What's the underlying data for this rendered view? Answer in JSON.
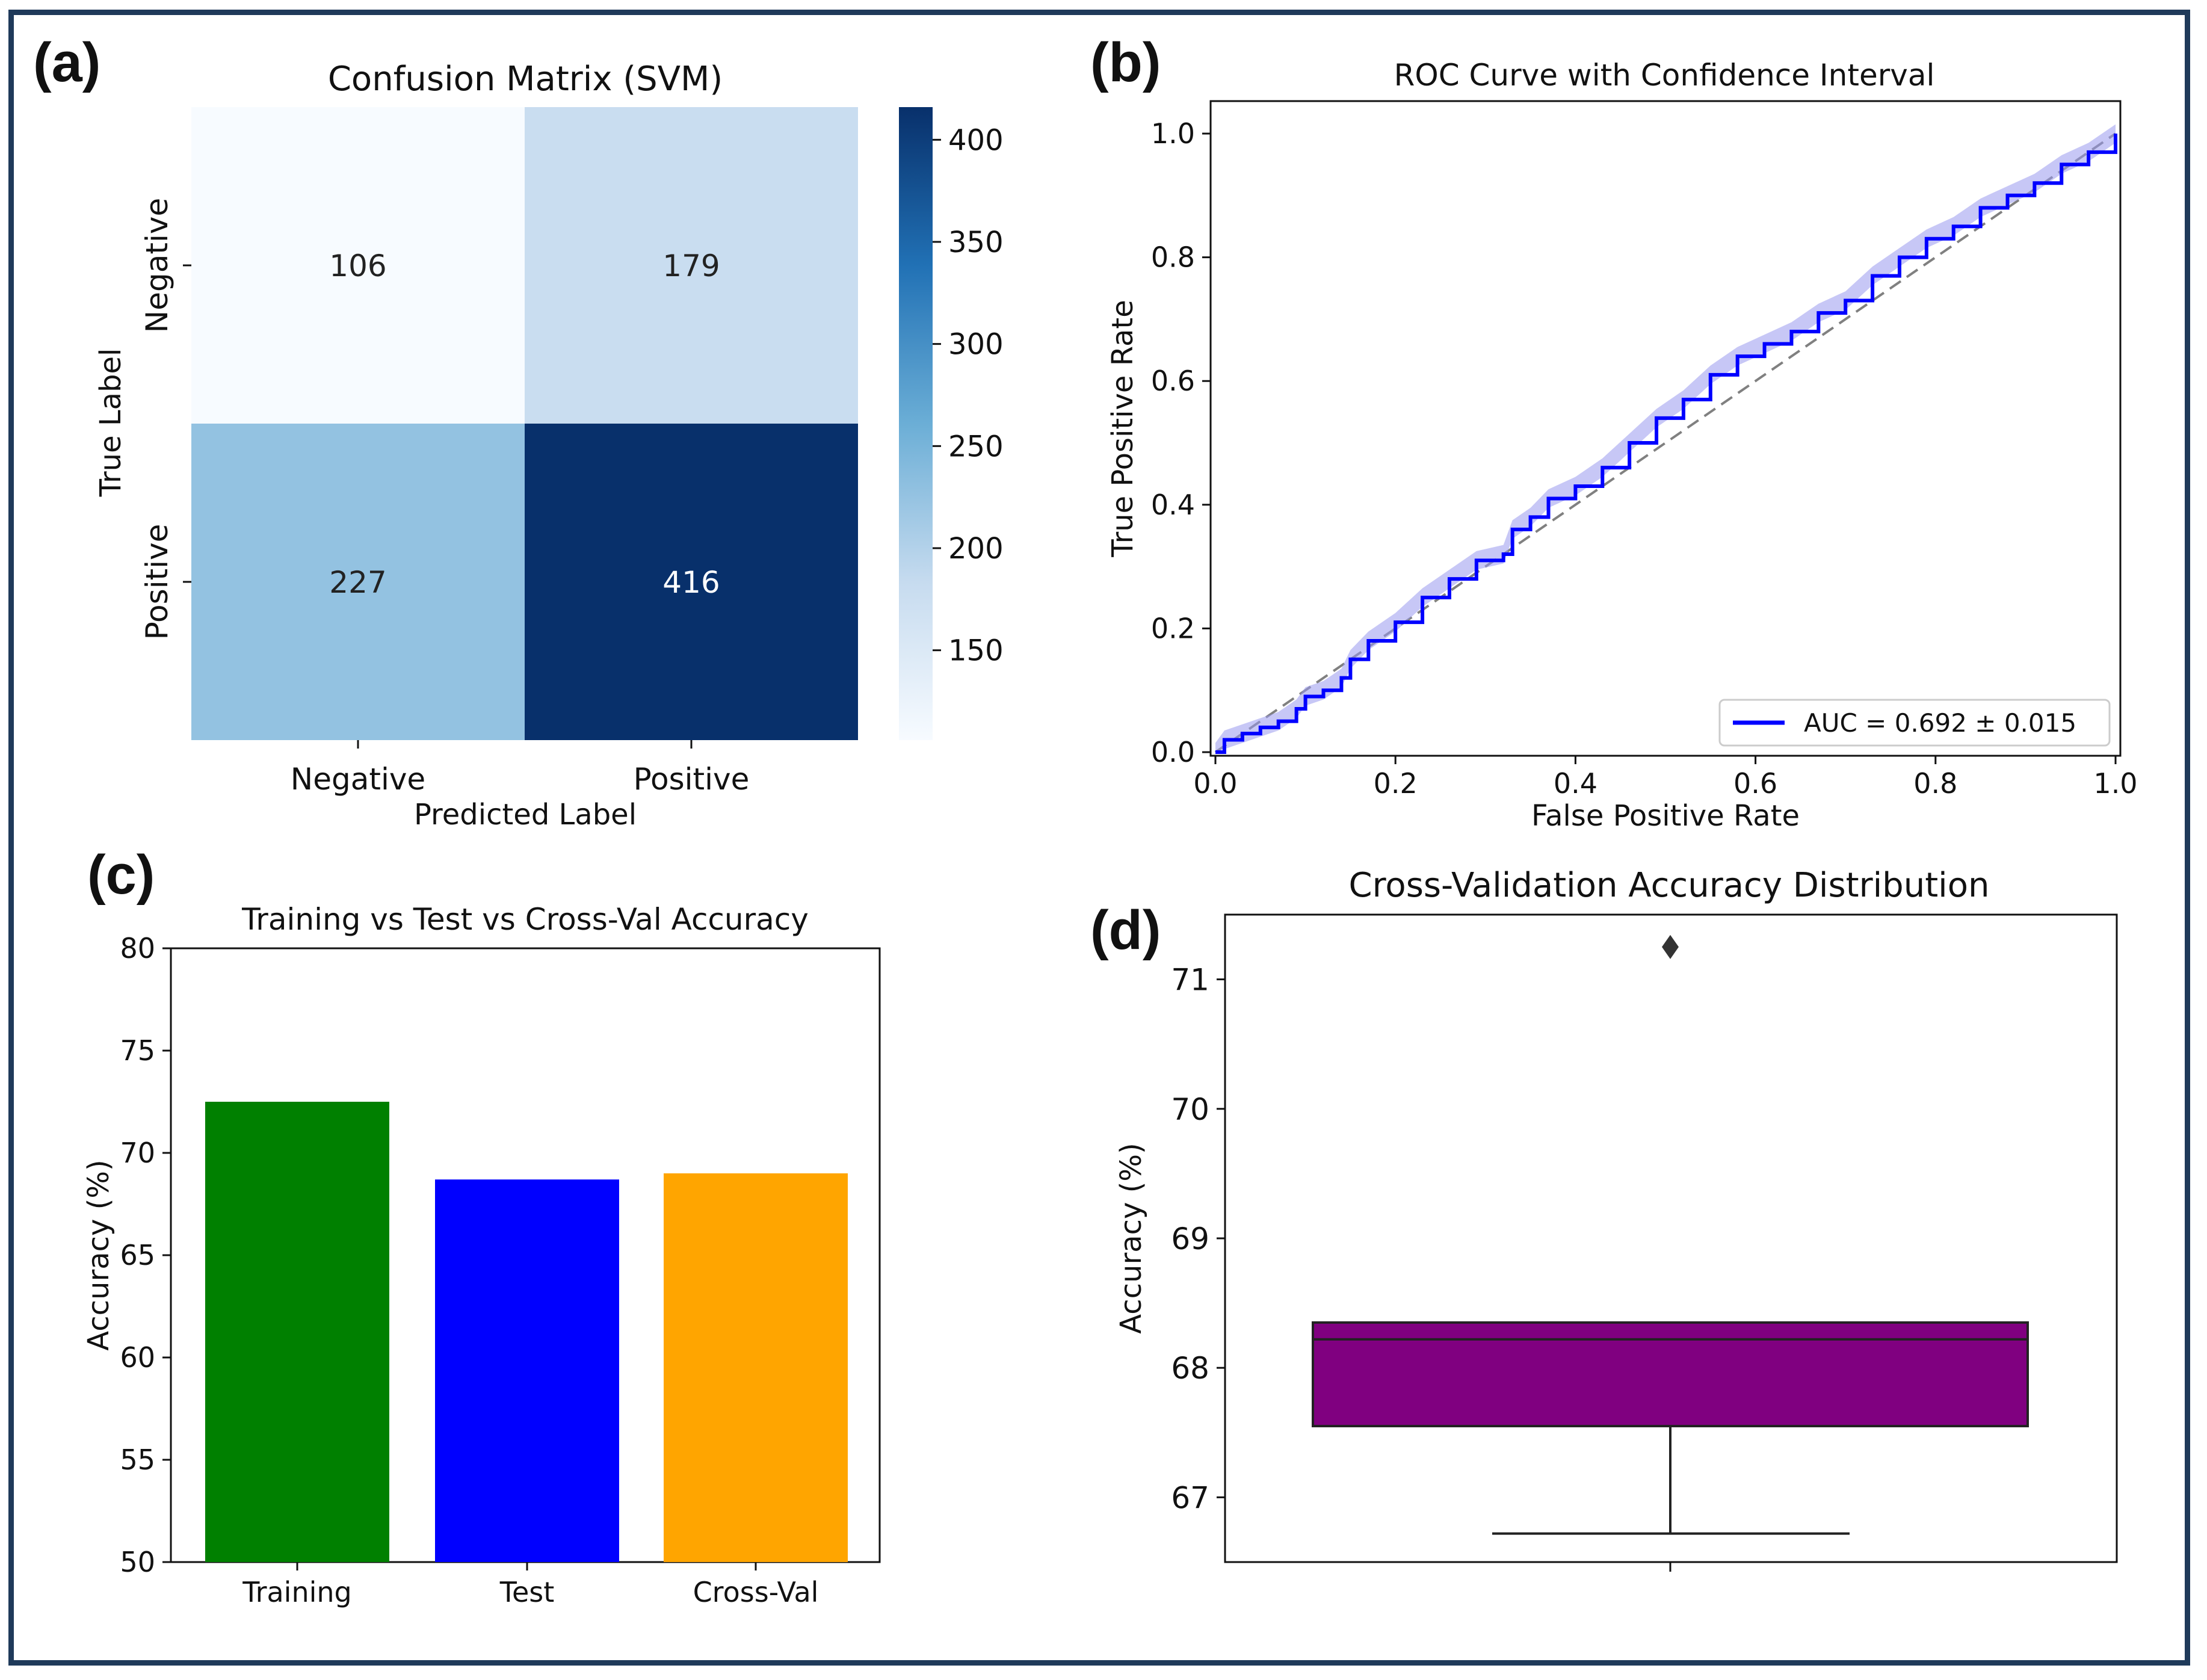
{
  "panels": {
    "a": "(a)",
    "b": "(b)",
    "c": "(c)",
    "d": "(d)"
  },
  "colors": {
    "frame": "#1f3a5a",
    "training": "#008000",
    "test": "#0000ff",
    "crossval": "#ffa500",
    "box": "#800080",
    "roc": "#0000ff",
    "roc_ci": "#9999ee",
    "diagonal": "#808080"
  },
  "chart_data": [
    {
      "type": "heatmap",
      "title": "Confusion Matrix (SVM)",
      "xlabel": "Predicted Label",
      "ylabel": "True Label",
      "x_categories": [
        "Negative",
        "Positive"
      ],
      "y_categories": [
        "Negative",
        "Positive"
      ],
      "values": [
        [
          106,
          179
        ],
        [
          227,
          416
        ]
      ],
      "colorbar": {
        "range": [
          106,
          416
        ],
        "ticks": [
          "150",
          "200",
          "250",
          "300",
          "350",
          "400"
        ],
        "colormap": "Blues"
      }
    },
    {
      "type": "line",
      "title": "ROC Curve with Confidence Interval",
      "xlabel": "False Positive Rate",
      "ylabel": "True Positive Rate",
      "xlim": [
        0,
        1
      ],
      "ylim": [
        0,
        1
      ],
      "xticks": [
        "0.0",
        "0.2",
        "0.4",
        "0.6",
        "0.8",
        "1.0"
      ],
      "yticks": [
        "0.0",
        "0.2",
        "0.4",
        "0.6",
        "0.8",
        "1.0"
      ],
      "legend_position": "lower-right",
      "series": [
        {
          "name": "AUC = 0.692 ± 0.015",
          "x": [
            0.0,
            0.01,
            0.03,
            0.05,
            0.07,
            0.09,
            0.1,
            0.12,
            0.14,
            0.15,
            0.17,
            0.2,
            0.23,
            0.26,
            0.29,
            0.32,
            0.33,
            0.35,
            0.37,
            0.4,
            0.43,
            0.46,
            0.49,
            0.52,
            0.55,
            0.58,
            0.61,
            0.64,
            0.67,
            0.7,
            0.73,
            0.76,
            0.79,
            0.82,
            0.85,
            0.88,
            0.91,
            0.94,
            0.97,
            1.0
          ],
          "y": [
            0.0,
            0.02,
            0.03,
            0.04,
            0.05,
            0.07,
            0.09,
            0.1,
            0.12,
            0.15,
            0.18,
            0.21,
            0.25,
            0.28,
            0.31,
            0.32,
            0.36,
            0.38,
            0.41,
            0.43,
            0.46,
            0.5,
            0.54,
            0.57,
            0.61,
            0.64,
            0.66,
            0.68,
            0.71,
            0.73,
            0.77,
            0.8,
            0.83,
            0.85,
            0.88,
            0.9,
            0.92,
            0.95,
            0.97,
            1.0
          ],
          "ci": 0.015
        },
        {
          "name": "",
          "style": "dashed",
          "x": [
            0,
            1
          ],
          "y": [
            0,
            1
          ]
        }
      ]
    },
    {
      "type": "bar",
      "title": "Training vs Test vs Cross-Val Accuracy",
      "xlabel": "",
      "ylabel": "Accuracy (%)",
      "categories": [
        "Training",
        "Test",
        "Cross-Val"
      ],
      "values": [
        72.5,
        68.7,
        69.0
      ],
      "ylim": [
        50,
        80
      ],
      "yticks": [
        "50",
        "55",
        "60",
        "65",
        "70",
        "75",
        "80"
      ]
    },
    {
      "type": "box",
      "title": "Cross-Validation Accuracy Distribution",
      "xlabel": "",
      "ylabel": "Accuracy (%)",
      "ylim": [
        66.5,
        71.5
      ],
      "yticks": [
        "67",
        "68",
        "69",
        "70",
        "71"
      ],
      "whisker_low": 66.72,
      "q1": 67.55,
      "median": 68.22,
      "q3": 68.35,
      "whisker_high": 68.35,
      "outliers": [
        71.25
      ]
    }
  ]
}
